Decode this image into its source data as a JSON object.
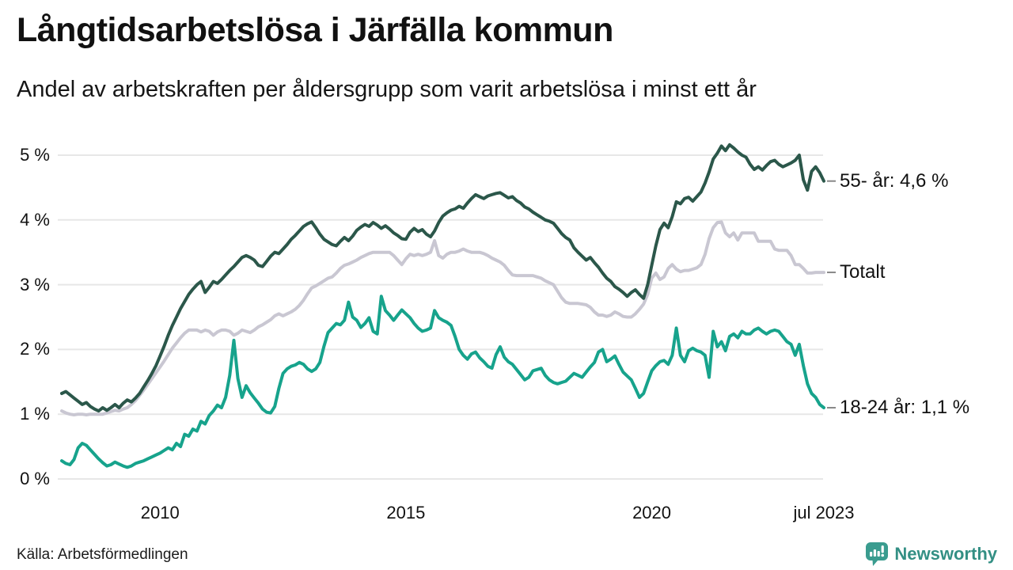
{
  "header": {
    "title": "Långtidsarbetslösa i Järfälla kommun",
    "subtitle": "Andel av arbetskraften per åldersgrupp som varit arbetslösa i minst ett år"
  },
  "footer": {
    "source": "Källa: Arbetsförmedlingen",
    "brand": "Newsworthy"
  },
  "colors": {
    "series_55": "#2b574a",
    "series_total": "#c9c7d2",
    "series_18_24": "#17a38c",
    "gridline": "#e7e7e7",
    "end_tick": "#888888",
    "text": "#111111",
    "brand_teal": "#3a9c8f"
  },
  "chart_data": {
    "type": "line",
    "frequency": "monthly",
    "x_start": "2008-01",
    "x_end": "2023-07",
    "ylim": [
      0,
      5
    ],
    "grid": "horizontal",
    "legend_position": "right-end-labels",
    "yticks": [
      {
        "value": 0,
        "label": "0 %"
      },
      {
        "value": 1,
        "label": "1 %"
      },
      {
        "value": 2,
        "label": "2 %"
      },
      {
        "value": 3,
        "label": "3 %"
      },
      {
        "value": 4,
        "label": "4 %"
      },
      {
        "value": 5,
        "label": "5 %"
      }
    ],
    "xticks": [
      {
        "month_index": 24,
        "label": "2010"
      },
      {
        "month_index": 84,
        "label": "2015"
      },
      {
        "month_index": 144,
        "label": "2020"
      },
      {
        "month_index": 186,
        "label": "jul 2023"
      }
    ],
    "series": [
      {
        "name": "Totalt",
        "end_label": "Totalt",
        "color": "#c9c7d2",
        "values": [
          1.05,
          1.02,
          1.0,
          0.99,
          1.0,
          1.0,
          0.99,
          1.0,
          1.0,
          1.0,
          1.0,
          1.02,
          1.04,
          1.06,
          1.05,
          1.08,
          1.1,
          1.15,
          1.21,
          1.29,
          1.37,
          1.46,
          1.55,
          1.64,
          1.73,
          1.82,
          1.92,
          2.02,
          2.1,
          2.18,
          2.25,
          2.3,
          2.3,
          2.3,
          2.27,
          2.3,
          2.28,
          2.22,
          2.27,
          2.3,
          2.3,
          2.28,
          2.22,
          2.25,
          2.3,
          2.28,
          2.26,
          2.3,
          2.35,
          2.38,
          2.42,
          2.46,
          2.52,
          2.55,
          2.52,
          2.55,
          2.58,
          2.62,
          2.68,
          2.76,
          2.86,
          2.95,
          2.98,
          3.02,
          3.06,
          3.1,
          3.12,
          3.18,
          3.25,
          3.3,
          3.32,
          3.35,
          3.38,
          3.42,
          3.45,
          3.48,
          3.5,
          3.5,
          3.5,
          3.5,
          3.5,
          3.45,
          3.38,
          3.31,
          3.4,
          3.47,
          3.45,
          3.47,
          3.45,
          3.47,
          3.5,
          3.68,
          3.45,
          3.41,
          3.47,
          3.5,
          3.5,
          3.52,
          3.55,
          3.52,
          3.5,
          3.5,
          3.5,
          3.48,
          3.45,
          3.41,
          3.38,
          3.35,
          3.3,
          3.22,
          3.15,
          3.14,
          3.14,
          3.14,
          3.14,
          3.14,
          3.12,
          3.1,
          3.06,
          3.03,
          3.0,
          2.9,
          2.8,
          2.73,
          2.71,
          2.71,
          2.71,
          2.7,
          2.69,
          2.65,
          2.58,
          2.53,
          2.53,
          2.51,
          2.53,
          2.58,
          2.55,
          2.51,
          2.5,
          2.5,
          2.55,
          2.62,
          2.7,
          2.85,
          3.1,
          3.18,
          3.08,
          3.12,
          3.25,
          3.31,
          3.24,
          3.2,
          3.22,
          3.22,
          3.24,
          3.26,
          3.31,
          3.47,
          3.71,
          3.88,
          3.96,
          3.97,
          3.8,
          3.74,
          3.8,
          3.69,
          3.8,
          3.8,
          3.8,
          3.8,
          3.67,
          3.67,
          3.67,
          3.67,
          3.55,
          3.53,
          3.53,
          3.53,
          3.45,
          3.31,
          3.31,
          3.25,
          3.18,
          3.18,
          3.19,
          3.19,
          3.19
        ]
      },
      {
        "name": "55- år",
        "end_label": "55- år: 4,6 %",
        "color": "#2b574a",
        "values": [
          1.32,
          1.35,
          1.3,
          1.25,
          1.2,
          1.15,
          1.18,
          1.12,
          1.08,
          1.05,
          1.1,
          1.06,
          1.1,
          1.15,
          1.1,
          1.17,
          1.22,
          1.19,
          1.25,
          1.32,
          1.42,
          1.52,
          1.63,
          1.75,
          1.9,
          2.05,
          2.22,
          2.37,
          2.5,
          2.63,
          2.74,
          2.85,
          2.93,
          3.0,
          3.05,
          2.88,
          2.96,
          3.05,
          3.02,
          3.08,
          3.15,
          3.22,
          3.28,
          3.35,
          3.42,
          3.45,
          3.42,
          3.38,
          3.3,
          3.28,
          3.36,
          3.44,
          3.5,
          3.48,
          3.55,
          3.62,
          3.7,
          3.76,
          3.83,
          3.9,
          3.94,
          3.97,
          3.88,
          3.78,
          3.7,
          3.66,
          3.62,
          3.6,
          3.67,
          3.73,
          3.68,
          3.75,
          3.84,
          3.89,
          3.93,
          3.9,
          3.96,
          3.92,
          3.87,
          3.91,
          3.86,
          3.8,
          3.76,
          3.71,
          3.7,
          3.81,
          3.87,
          3.82,
          3.85,
          3.78,
          3.74,
          3.83,
          3.96,
          4.06,
          4.11,
          4.15,
          4.17,
          4.21,
          4.18,
          4.26,
          4.33,
          4.39,
          4.36,
          4.33,
          4.37,
          4.39,
          4.41,
          4.42,
          4.38,
          4.34,
          4.36,
          4.3,
          4.26,
          4.2,
          4.17,
          4.12,
          4.08,
          4.04,
          4.0,
          3.98,
          3.95,
          3.87,
          3.79,
          3.73,
          3.69,
          3.57,
          3.5,
          3.44,
          3.38,
          3.42,
          3.34,
          3.27,
          3.18,
          3.1,
          3.05,
          2.97,
          2.93,
          2.88,
          2.82,
          2.88,
          2.92,
          2.85,
          2.79,
          3.0,
          3.3,
          3.6,
          3.85,
          3.95,
          3.88,
          4.05,
          4.28,
          4.25,
          4.33,
          4.35,
          4.29,
          4.36,
          4.43,
          4.57,
          4.74,
          4.94,
          5.03,
          5.14,
          5.07,
          5.16,
          5.11,
          5.05,
          5.0,
          4.97,
          4.86,
          4.78,
          4.82,
          4.77,
          4.84,
          4.9,
          4.92,
          4.86,
          4.82,
          4.85,
          4.88,
          4.92,
          5.0,
          4.62,
          4.46,
          4.75,
          4.82,
          4.73,
          4.6
        ]
      },
      {
        "name": "18-24 år",
        "end_label": "18-24 år: 1,1 %",
        "color": "#17a38c",
        "values": [
          0.28,
          0.24,
          0.22,
          0.3,
          0.48,
          0.55,
          0.52,
          0.45,
          0.38,
          0.31,
          0.25,
          0.2,
          0.22,
          0.26,
          0.23,
          0.2,
          0.18,
          0.2,
          0.24,
          0.26,
          0.28,
          0.31,
          0.34,
          0.37,
          0.4,
          0.44,
          0.48,
          0.45,
          0.55,
          0.5,
          0.69,
          0.66,
          0.77,
          0.74,
          0.89,
          0.85,
          0.98,
          1.05,
          1.14,
          1.1,
          1.26,
          1.6,
          2.14,
          1.55,
          1.26,
          1.44,
          1.33,
          1.25,
          1.17,
          1.08,
          1.03,
          1.02,
          1.12,
          1.4,
          1.63,
          1.7,
          1.74,
          1.76,
          1.8,
          1.77,
          1.7,
          1.66,
          1.7,
          1.8,
          2.05,
          2.26,
          2.33,
          2.4,
          2.38,
          2.45,
          2.73,
          2.5,
          2.45,
          2.34,
          2.4,
          2.49,
          2.28,
          2.24,
          2.82,
          2.6,
          2.53,
          2.45,
          2.53,
          2.61,
          2.55,
          2.49,
          2.4,
          2.33,
          2.28,
          2.3,
          2.33,
          2.6,
          2.49,
          2.45,
          2.42,
          2.37,
          2.2,
          2.0,
          1.91,
          1.85,
          1.93,
          1.96,
          1.87,
          1.81,
          1.74,
          1.71,
          1.92,
          2.04,
          1.88,
          1.81,
          1.77,
          1.69,
          1.61,
          1.53,
          1.57,
          1.67,
          1.69,
          1.71,
          1.6,
          1.53,
          1.49,
          1.47,
          1.49,
          1.51,
          1.57,
          1.63,
          1.6,
          1.57,
          1.65,
          1.73,
          1.8,
          1.96,
          2.0,
          1.81,
          1.85,
          1.9,
          1.77,
          1.65,
          1.59,
          1.53,
          1.4,
          1.26,
          1.32,
          1.5,
          1.67,
          1.75,
          1.81,
          1.83,
          1.77,
          1.91,
          2.33,
          1.91,
          1.81,
          1.98,
          2.02,
          1.98,
          1.96,
          1.91,
          1.57,
          2.28,
          2.04,
          2.12,
          1.98,
          2.2,
          2.24,
          2.18,
          2.28,
          2.24,
          2.24,
          2.3,
          2.33,
          2.28,
          2.24,
          2.28,
          2.3,
          2.28,
          2.2,
          2.12,
          2.08,
          1.91,
          2.08,
          1.75,
          1.47,
          1.32,
          1.26,
          1.15,
          1.1
        ]
      }
    ]
  }
}
